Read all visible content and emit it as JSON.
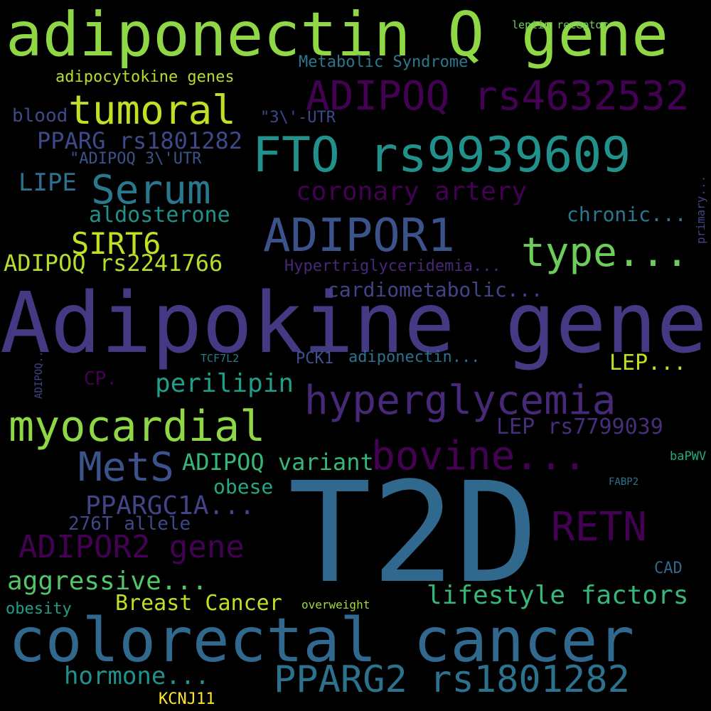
{
  "words": [
    {
      "text": "adiponectin Q gene",
      "color": "#8fd744"
    },
    {
      "text": "Adipokine gene",
      "color": "#443983"
    },
    {
      "text": "T2D",
      "color": "#31688e"
    },
    {
      "text": "colorectal cancer",
      "color": "#31688e"
    },
    {
      "text": "FTO rs9939609",
      "color": "#21918c"
    },
    {
      "text": "ADIPOQ rs4632532",
      "color": "#440154"
    },
    {
      "text": "ADIPOR1",
      "color": "#3b528b"
    },
    {
      "text": "hyperglycemia",
      "color": "#482878"
    },
    {
      "text": "myocardial",
      "color": "#8fd744"
    },
    {
      "text": "tumoral",
      "color": "#c2df23"
    },
    {
      "text": "Serum",
      "color": "#2a788e"
    },
    {
      "text": "bovine...",
      "color": "#440154"
    },
    {
      "text": "type...",
      "color": "#6ccd5a"
    },
    {
      "text": "PPARG2 rs1801282",
      "color": "#2c728e"
    },
    {
      "text": "MetS",
      "color": "#3b528b"
    },
    {
      "text": "RETN",
      "color": "#440154"
    },
    {
      "text": "ADIPOR2 gene",
      "color": "#440154"
    },
    {
      "text": "lifestyle factors",
      "color": "#35b779"
    },
    {
      "text": "aggressive...",
      "color": "#52c569"
    },
    {
      "text": "hormone...",
      "color": "#21918c"
    },
    {
      "text": "coronary artery",
      "color": "#440154"
    },
    {
      "text": "cardiometabolic...",
      "color": "#414487"
    },
    {
      "text": "perilipin",
      "color": "#1f9e89"
    },
    {
      "text": "SIRT6",
      "color": "#c2df23"
    },
    {
      "text": "PPARGC1A...",
      "color": "#414487"
    },
    {
      "text": "ADIPOQ rs2241766",
      "color": "#b5de2b"
    },
    {
      "text": "aldosterone",
      "color": "#21918c"
    },
    {
      "text": "PPARG rs1801282",
      "color": "#3e4989"
    },
    {
      "text": "LEP rs7799039",
      "color": "#472d7b"
    },
    {
      "text": "ADIPOQ variant",
      "color": "#35b779"
    },
    {
      "text": "Breast Cancer",
      "color": "#c2df23"
    },
    {
      "text": "LIPE",
      "color": "#2c728e"
    },
    {
      "text": "chronic...",
      "color": "#2a788e"
    },
    {
      "text": "LEP...",
      "color": "#c2df23"
    },
    {
      "text": "obese",
      "color": "#22a884"
    },
    {
      "text": "276T allele",
      "color": "#3e4989"
    },
    {
      "text": "adipocytokine genes",
      "color": "#b5de2b"
    },
    {
      "text": "Metabolic Syndrome",
      "color": "#2a788e"
    },
    {
      "text": "blood",
      "color": "#3e4989"
    },
    {
      "text": "Hypertriglyceridemia...",
      "color": "#482878"
    },
    {
      "text": "obesity",
      "color": "#1f9e89"
    },
    {
      "text": "CP.",
      "color": "#440154"
    },
    {
      "text": "PCK1",
      "color": "#3b528b"
    },
    {
      "text": "adiponectin...",
      "color": "#2c728e"
    },
    {
      "text": "CAD",
      "color": "#31688e"
    },
    {
      "text": "KCNJ11",
      "color": "#fde725"
    },
    {
      "text": "\"3\\'-UTR",
      "color": "#3e4989"
    },
    {
      "text": "\"ADIPOQ 3\\'UTR",
      "color": "#3b528b"
    },
    {
      "text": "baPWV",
      "color": "#22a884"
    },
    {
      "text": "overweight",
      "color": "#a0da39"
    },
    {
      "text": "leptin receptor",
      "color": "#6ccd5a"
    },
    {
      "text": "TCF7L2",
      "color": "#2a788e"
    },
    {
      "text": "FABP2",
      "color": "#2c728e"
    },
    {
      "text": "primary...",
      "color": "#414487"
    },
    {
      "text": "ADIPOQ...",
      "color": "#414487"
    }
  ]
}
